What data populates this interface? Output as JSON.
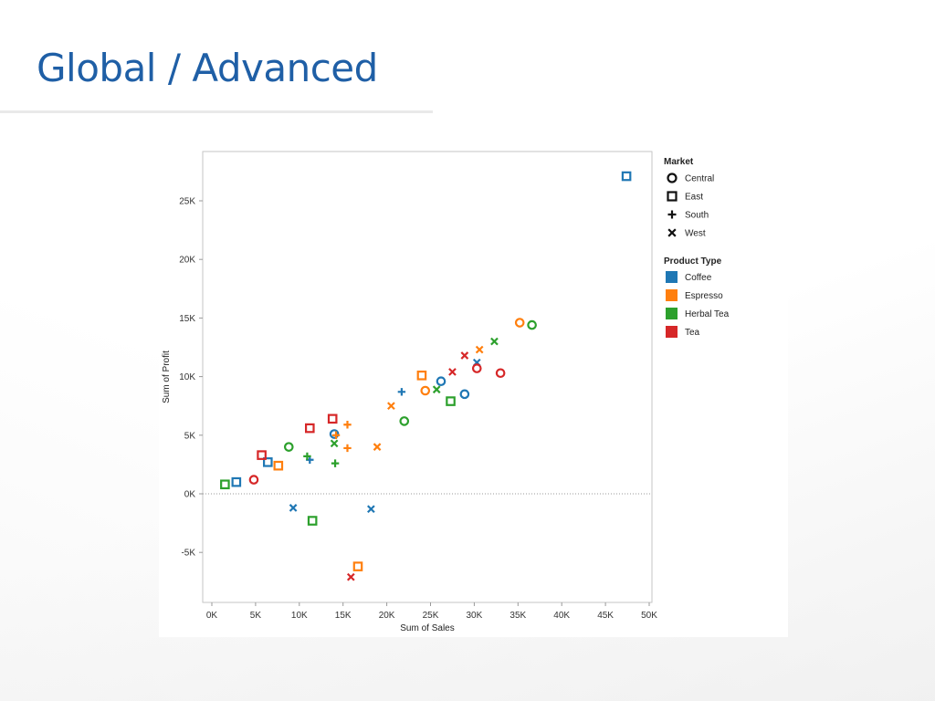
{
  "slide": {
    "title": "Global / Advanced"
  },
  "chart_data": {
    "type": "scatter",
    "xlabel": "Sum of Sales",
    "ylabel": "Sum of Profit",
    "xlim": [
      0,
      50000
    ],
    "ylim": [
      -9000,
      29000
    ],
    "x_ticks": [
      {
        "value": 0,
        "label": "0K"
      },
      {
        "value": 5000,
        "label": "5K"
      },
      {
        "value": 10000,
        "label": "10K"
      },
      {
        "value": 15000,
        "label": "15K"
      },
      {
        "value": 20000,
        "label": "20K"
      },
      {
        "value": 25000,
        "label": "25K"
      },
      {
        "value": 30000,
        "label": "30K"
      },
      {
        "value": 35000,
        "label": "35K"
      },
      {
        "value": 40000,
        "label": "40K"
      },
      {
        "value": 45000,
        "label": "45K"
      },
      {
        "value": 50000,
        "label": "50K"
      }
    ],
    "y_ticks": [
      {
        "value": -5000,
        "label": "-5K"
      },
      {
        "value": 0,
        "label": "0K"
      },
      {
        "value": 5000,
        "label": "5K"
      },
      {
        "value": 10000,
        "label": "10K"
      },
      {
        "value": 15000,
        "label": "15K"
      },
      {
        "value": 20000,
        "label": "20K"
      },
      {
        "value": 25000,
        "label": "25K"
      }
    ],
    "zero_line": true,
    "grid": false,
    "legend_placement": "right",
    "legends": {
      "shape": {
        "title": "Market",
        "items": [
          {
            "label": "Central",
            "shape": "circle"
          },
          {
            "label": "East",
            "shape": "square"
          },
          {
            "label": "South",
            "shape": "plus"
          },
          {
            "label": "West",
            "shape": "cross"
          }
        ]
      },
      "color": {
        "title": "Product Type",
        "items": [
          {
            "label": "Coffee",
            "color": "#1f77b4"
          },
          {
            "label": "Espresso",
            "color": "#ff7f0e"
          },
          {
            "label": "Herbal Tea",
            "color": "#2ca02c"
          },
          {
            "label": "Tea",
            "color": "#d62728"
          }
        ]
      }
    },
    "points": [
      {
        "x": 47400,
        "y": 27100,
        "market": "East",
        "product": "Coffee"
      },
      {
        "x": 6400,
        "y": 2700,
        "market": "East",
        "product": "Coffee"
      },
      {
        "x": 2800,
        "y": 1000,
        "market": "East",
        "product": "Coffee"
      },
      {
        "x": 14000,
        "y": 5100,
        "market": "Central",
        "product": "Coffee"
      },
      {
        "x": 26200,
        "y": 9600,
        "market": "Central",
        "product": "Coffee"
      },
      {
        "x": 28900,
        "y": 8500,
        "market": "Central",
        "product": "Coffee"
      },
      {
        "x": 21700,
        "y": 8700,
        "market": "South",
        "product": "Coffee"
      },
      {
        "x": 11200,
        "y": 2900,
        "market": "South",
        "product": "Coffee"
      },
      {
        "x": 30300,
        "y": 11200,
        "market": "West",
        "product": "Coffee"
      },
      {
        "x": 9300,
        "y": -1200,
        "market": "West",
        "product": "Coffee"
      },
      {
        "x": 18200,
        "y": -1300,
        "market": "West",
        "product": "Coffee"
      },
      {
        "x": 35200,
        "y": 14600,
        "market": "Central",
        "product": "Espresso"
      },
      {
        "x": 24400,
        "y": 8800,
        "market": "Central",
        "product": "Espresso"
      },
      {
        "x": 24000,
        "y": 10100,
        "market": "East",
        "product": "Espresso"
      },
      {
        "x": 7600,
        "y": 2400,
        "market": "East",
        "product": "Espresso"
      },
      {
        "x": 16700,
        "y": -6200,
        "market": "East",
        "product": "Espresso"
      },
      {
        "x": 15500,
        "y": 5900,
        "market": "South",
        "product": "Espresso"
      },
      {
        "x": 15500,
        "y": 3900,
        "market": "South",
        "product": "Espresso"
      },
      {
        "x": 14200,
        "y": 5000,
        "market": "South",
        "product": "Espresso"
      },
      {
        "x": 30600,
        "y": 12300,
        "market": "West",
        "product": "Espresso"
      },
      {
        "x": 20500,
        "y": 7500,
        "market": "West",
        "product": "Espresso"
      },
      {
        "x": 18900,
        "y": 4000,
        "market": "West",
        "product": "Espresso"
      },
      {
        "x": 36600,
        "y": 14400,
        "market": "Central",
        "product": "Herbal Tea"
      },
      {
        "x": 22000,
        "y": 6200,
        "market": "Central",
        "product": "Herbal Tea"
      },
      {
        "x": 8800,
        "y": 4000,
        "market": "Central",
        "product": "Herbal Tea"
      },
      {
        "x": 27300,
        "y": 7900,
        "market": "East",
        "product": "Herbal Tea"
      },
      {
        "x": 1500,
        "y": 800,
        "market": "East",
        "product": "Herbal Tea"
      },
      {
        "x": 11500,
        "y": -2300,
        "market": "East",
        "product": "Herbal Tea"
      },
      {
        "x": 14100,
        "y": 2600,
        "market": "South",
        "product": "Herbal Tea"
      },
      {
        "x": 10900,
        "y": 3200,
        "market": "South",
        "product": "Herbal Tea"
      },
      {
        "x": 32300,
        "y": 13000,
        "market": "West",
        "product": "Herbal Tea"
      },
      {
        "x": 25700,
        "y": 8900,
        "market": "West",
        "product": "Herbal Tea"
      },
      {
        "x": 14000,
        "y": 4300,
        "market": "West",
        "product": "Herbal Tea"
      },
      {
        "x": 33000,
        "y": 10300,
        "market": "Central",
        "product": "Tea"
      },
      {
        "x": 30300,
        "y": 10700,
        "market": "Central",
        "product": "Tea"
      },
      {
        "x": 4800,
        "y": 1200,
        "market": "Central",
        "product": "Tea"
      },
      {
        "x": 13800,
        "y": 6400,
        "market": "East",
        "product": "Tea"
      },
      {
        "x": 11200,
        "y": 5600,
        "market": "East",
        "product": "Tea"
      },
      {
        "x": 5700,
        "y": 3300,
        "market": "East",
        "product": "Tea"
      },
      {
        "x": 28900,
        "y": 11800,
        "market": "West",
        "product": "Tea"
      },
      {
        "x": 27500,
        "y": 10400,
        "market": "West",
        "product": "Tea"
      },
      {
        "x": 15900,
        "y": -7100,
        "market": "West",
        "product": "Tea"
      }
    ]
  }
}
